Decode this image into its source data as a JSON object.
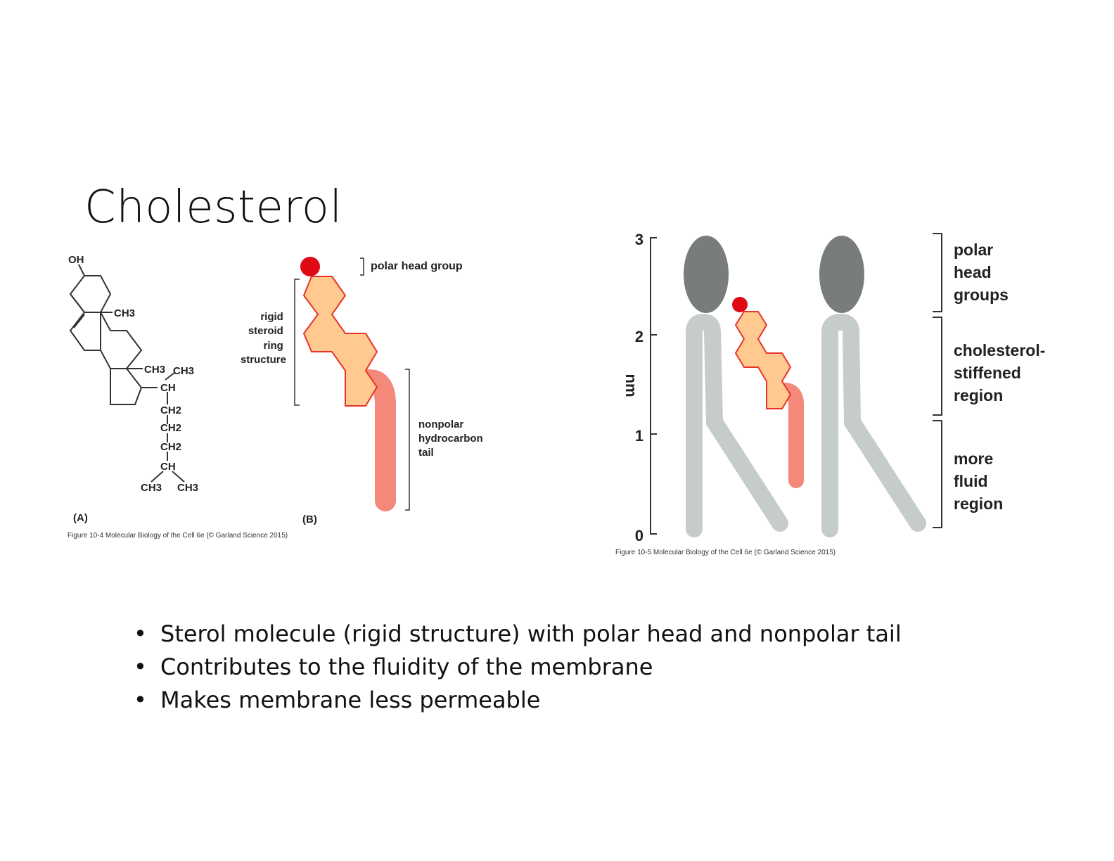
{
  "slide": {
    "title": "Cholesterol",
    "bullets": [
      "Sterol molecule (rigid structure) with polar head and nonpolar tail",
      "Contributes to the fluidity of the membrane",
      "Makes membrane less permeable"
    ]
  },
  "figure1": {
    "panel_a_label": "(A)",
    "panel_b_label": "(B)",
    "caption": "Figure 10-4 Molecular Biology of the Cell 6e (© Garland Science 2015)",
    "structure_labels": {
      "oh": "OH",
      "ch3_ring": "CH3",
      "ch3_a": "CH3",
      "ch3_b": "CH3",
      "ch_1": "CH",
      "ch2_1": "CH2",
      "ch2_2": "CH2",
      "ch2_3": "CH2",
      "ch_2": "CH",
      "ch3_c": "CH3",
      "ch3_d": "CH3"
    },
    "polar_head_label": "polar head group",
    "rigid_label": [
      "rigid",
      "steroid",
      "ring",
      "structure"
    ],
    "tail_label": [
      "nonpolar",
      "hydrocarbon",
      "tail"
    ]
  },
  "figure2": {
    "axis_label": "nm",
    "ticks": [
      "3",
      "2",
      "1",
      "0"
    ],
    "caption": "Figure 10-5 Molecular Biology of the Cell 6e (© Garland Science 2015)",
    "region_polar": [
      "polar",
      "head",
      "groups"
    ],
    "region_stiff": [
      "cholesterol-",
      "stiffened",
      "region"
    ],
    "region_fluid": [
      "more",
      "fluid",
      "region"
    ]
  },
  "colors": {
    "polar_head_red": "#e00a14",
    "steroid_fill": "#ffc990",
    "steroid_stroke": "#e8332a",
    "tail": "#f4897a",
    "lipid_head": "#787c7d",
    "lipid_tail": "#c6ccc7"
  }
}
